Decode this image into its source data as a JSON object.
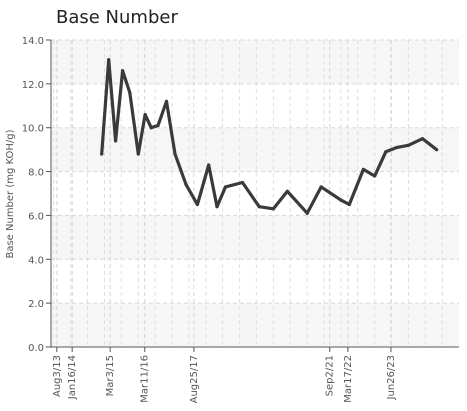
{
  "chart_data": {
    "type": "line",
    "title": "Base Number",
    "ylabel": "Base Number (mg KOH/g)",
    "xlabel": "",
    "ylim": [
      0,
      14
    ],
    "yticks": [
      "0.0",
      "2.0",
      "4.0",
      "6.0",
      "8.0",
      "10.0",
      "12.0",
      "14.0"
    ],
    "xlim": [
      "2013-06-01",
      "2025-07-01"
    ],
    "xticks": [
      {
        "date": "2013-08-03",
        "label": "Aug3/13"
      },
      {
        "date": "2014-01-16",
        "label": "Jan16/14"
      },
      {
        "date": "2015-03-03",
        "label": "Mar3/15"
      },
      {
        "date": "2016-03-11",
        "label": "Mar11/16"
      },
      {
        "date": "2017-08-25",
        "label": "Aug25/17"
      },
      {
        "date": "2021-09-02",
        "label": "Sep2/21"
      },
      {
        "date": "2022-03-17",
        "label": "Mar17/22"
      },
      {
        "date": "2023-06-26",
        "label": "Jun26/23"
      }
    ],
    "grid": true,
    "line_color": "#3a3a3a",
    "series": [
      {
        "values": [
          {
            "x": "2014-12-01",
            "y": 8.8
          },
          {
            "x": "2015-02-15",
            "y": 13.1
          },
          {
            "x": "2015-05-01",
            "y": 9.4
          },
          {
            "x": "2015-07-15",
            "y": 12.6
          },
          {
            "x": "2015-10-01",
            "y": 11.6
          },
          {
            "x": "2016-01-01",
            "y": 8.8
          },
          {
            "x": "2016-03-15",
            "y": 10.6
          },
          {
            "x": "2016-05-20",
            "y": 10.0
          },
          {
            "x": "2016-08-01",
            "y": 10.1
          },
          {
            "x": "2016-11-01",
            "y": 11.2
          },
          {
            "x": "2017-02-01",
            "y": 8.8
          },
          {
            "x": "2017-06-01",
            "y": 7.4
          },
          {
            "x": "2017-10-01",
            "y": 6.5
          },
          {
            "x": "2018-02-01",
            "y": 8.3
          },
          {
            "x": "2018-05-01",
            "y": 6.4
          },
          {
            "x": "2018-08-01",
            "y": 7.3
          },
          {
            "x": "2019-02-01",
            "y": 7.5
          },
          {
            "x": "2019-08-01",
            "y": 6.4
          },
          {
            "x": "2020-01-01",
            "y": 6.3
          },
          {
            "x": "2020-06-01",
            "y": 7.1
          },
          {
            "x": "2021-01-01",
            "y": 6.1
          },
          {
            "x": "2021-06-01",
            "y": 7.3
          },
          {
            "x": "2022-01-01",
            "y": 6.7
          },
          {
            "x": "2022-04-01",
            "y": 6.5
          },
          {
            "x": "2022-09-01",
            "y": 8.1
          },
          {
            "x": "2023-01-01",
            "y": 7.8
          },
          {
            "x": "2023-05-01",
            "y": 8.9
          },
          {
            "x": "2023-09-01",
            "y": 9.1
          },
          {
            "x": "2024-01-01",
            "y": 9.2
          },
          {
            "x": "2024-06-01",
            "y": 9.5
          },
          {
            "x": "2024-11-01",
            "y": 9.0
          }
        ]
      }
    ]
  }
}
